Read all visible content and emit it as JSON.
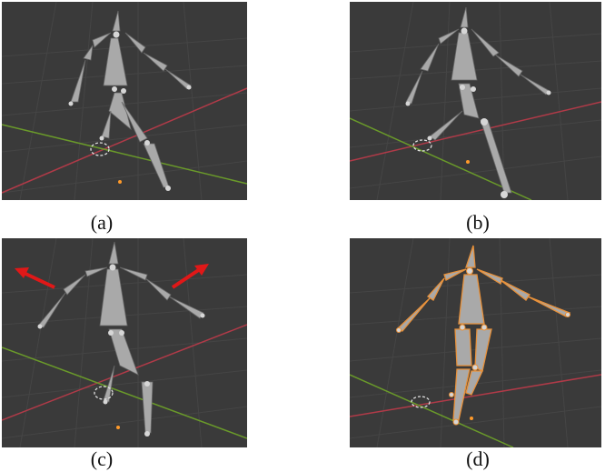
{
  "captions": {
    "a": "(a)",
    "b": "(b)",
    "c": "(c)",
    "d": "(d)"
  },
  "colors": {
    "viewport_bg": "#3a3a3a",
    "grid_line": "#454545",
    "bone_fill": "#a9a9a9",
    "bone_selected_outline": "#e8913a",
    "x_axis": "#b03a48",
    "y_axis": "#6a9a2a",
    "arrow": "#e01818",
    "origin_dot": "#ff9a2a"
  },
  "icons": {
    "arrow": "red-arrow-icon",
    "cursor": "3d-cursor-icon"
  }
}
